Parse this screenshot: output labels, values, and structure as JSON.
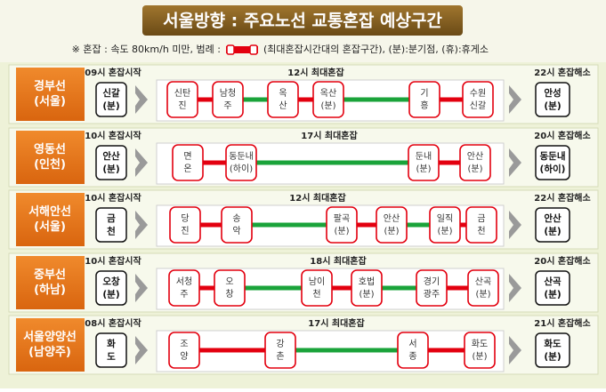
{
  "header": {
    "title": "서울방향 : 주요노선 교통혼잡 예상구간",
    "legend_prefix": "※ 혼잡 : 속도 80km/h 미만, 범례 :",
    "legend_suffix": "(최대혼잡시간대의 혼잡구간), (분):분기점, (휴):휴게소"
  },
  "routes": [
    {
      "name": [
        "경부선",
        "(서울)"
      ],
      "start_label": "09시 혼잡시작",
      "start_node": [
        "신갈",
        "(분)"
      ],
      "peak_label": "12시 최대혼잡",
      "end_label": "22시 혼잡해소",
      "end_node": [
        "안성",
        "(분)"
      ],
      "nodes": [
        [
          "신탄",
          "진"
        ],
        [
          "남청",
          "주"
        ],
        [
          "옥",
          "산"
        ],
        [
          "옥산",
          "(분)"
        ],
        [
          "기",
          "흥"
        ],
        [
          "수원",
          "신갈"
        ]
      ],
      "links": [
        "red",
        "green",
        "red",
        "green",
        "red"
      ]
    },
    {
      "name": [
        "영동선",
        "(인천)"
      ],
      "start_label": "10시 혼잡시작",
      "start_node": [
        "안산",
        "(분)"
      ],
      "peak_label": "17시 최대혼잡",
      "end_label": "20시 혼잡해소",
      "end_node": [
        "동둔내",
        "(하이)"
      ],
      "nodes": [
        [
          "면",
          "온"
        ],
        [
          "동둔내",
          "(하이)"
        ],
        [
          "둔내",
          "(분)"
        ],
        [
          "안산",
          "(분)"
        ]
      ],
      "links": [
        "red",
        "green",
        "red"
      ]
    },
    {
      "name": [
        "서해안선",
        "(서울)"
      ],
      "start_label": "10시 혼잡시작",
      "start_node": [
        "금",
        "천"
      ],
      "peak_label": "12시 최대혼잡",
      "end_label": "22시 혼잡해소",
      "end_node": [
        "안산",
        "(분)"
      ],
      "nodes": [
        [
          "당",
          "진"
        ],
        [
          "송",
          "악"
        ],
        [
          "팔곡",
          "(분)"
        ],
        [
          "안산",
          "(분)"
        ],
        [
          "일직",
          "(분)"
        ],
        [
          "금",
          "천"
        ]
      ],
      "links": [
        "red",
        "green",
        "red",
        "green",
        "red"
      ]
    },
    {
      "name": [
        "중부선",
        "(하남)"
      ],
      "start_label": "10시 혼잡시작",
      "start_node": [
        "오창",
        "(분)"
      ],
      "peak_label": "18시 최대혼잡",
      "end_label": "20시 혼잡해소",
      "end_node": [
        "산곡",
        "(분)"
      ],
      "nodes": [
        [
          "서청",
          "주"
        ],
        [
          "오",
          "창"
        ],
        [
          "남이",
          "천"
        ],
        [
          "호법",
          "(분)"
        ],
        [
          "경기",
          "광주"
        ],
        [
          "산곡",
          "(분)"
        ]
      ],
      "links": [
        "red",
        "green",
        "red",
        "green",
        "red"
      ]
    },
    {
      "name": [
        "서울양양선",
        "(남양주)"
      ],
      "start_label": "08시 혼잡시작",
      "start_node": [
        "화",
        "도"
      ],
      "peak_label": "17시 최대혼잡",
      "end_label": "21시 혼잡해소",
      "end_node": [
        "화도",
        "(분)"
      ],
      "nodes": [
        [
          "조",
          "양"
        ],
        [
          "강",
          "촌"
        ],
        [
          "서",
          "종"
        ],
        [
          "화도",
          "(분)"
        ]
      ],
      "links": [
        "red",
        "green",
        "red"
      ]
    }
  ]
}
